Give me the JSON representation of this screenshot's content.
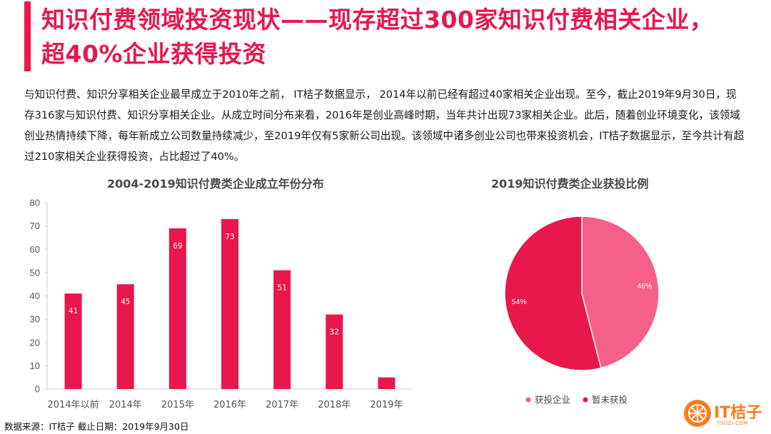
{
  "header": {
    "title_line1": "知识付费领域投资现状——现存超过300家知识付费相关企业，",
    "title_line2": "超40%企业获得投资",
    "accent_color": "#e8174c"
  },
  "intro": "与知识付费、知识分享相关企业最早成立于2010年之前， IT桔子数据显示， 2014年以前已经有超过40家相关企业出现。至今，截止2019年9月30日，现存316家与知识付费、知识分享相关企业。从成立时间分布来看，2016年是创业高峰时期，当年共计出现73家相关企业。此后，随着创业环境变化，该领域创业热情持续下降，每年新成立公司数量持续减少，至2019年仅有5家新公司出现。该领域中诸多创业公司也带来投资机会，IT桔子数据显示，至今共计有超过210家相关企业获得投资，占比超过了40%。",
  "chart_data": [
    {
      "type": "bar",
      "title": "2004-2019知识付费类企业成立年份分布",
      "categories": [
        "2014年以前",
        "2014年",
        "2015年",
        "2016年",
        "2017年",
        "2018年",
        "2019年"
      ],
      "values": [
        41,
        45,
        69,
        73,
        51,
        32,
        5
      ],
      "ylim": [
        0,
        80
      ],
      "yticks": [
        0,
        10,
        20,
        30,
        40,
        50,
        60,
        70,
        80
      ],
      "xlabel": "",
      "ylabel": "",
      "grid": false,
      "bar_color": "#e8174c",
      "data_labels": true
    },
    {
      "type": "pie",
      "title": "2019知识付费类企业获投比例",
      "slices": [
        {
          "name": "获投企业",
          "value": 46,
          "label": "46%",
          "color": "#f5608a"
        },
        {
          "name": "暂未获投",
          "value": 54,
          "label": "54%",
          "color": "#e8174c"
        }
      ],
      "legend_position": "bottom"
    }
  ],
  "footer": {
    "source": "数据来源：IT桔子 截止日期：2019年9月30日"
  },
  "logo": {
    "name": "IT桔子",
    "url_text": "ITJUZI.COM",
    "color": "#ff7b1c"
  }
}
